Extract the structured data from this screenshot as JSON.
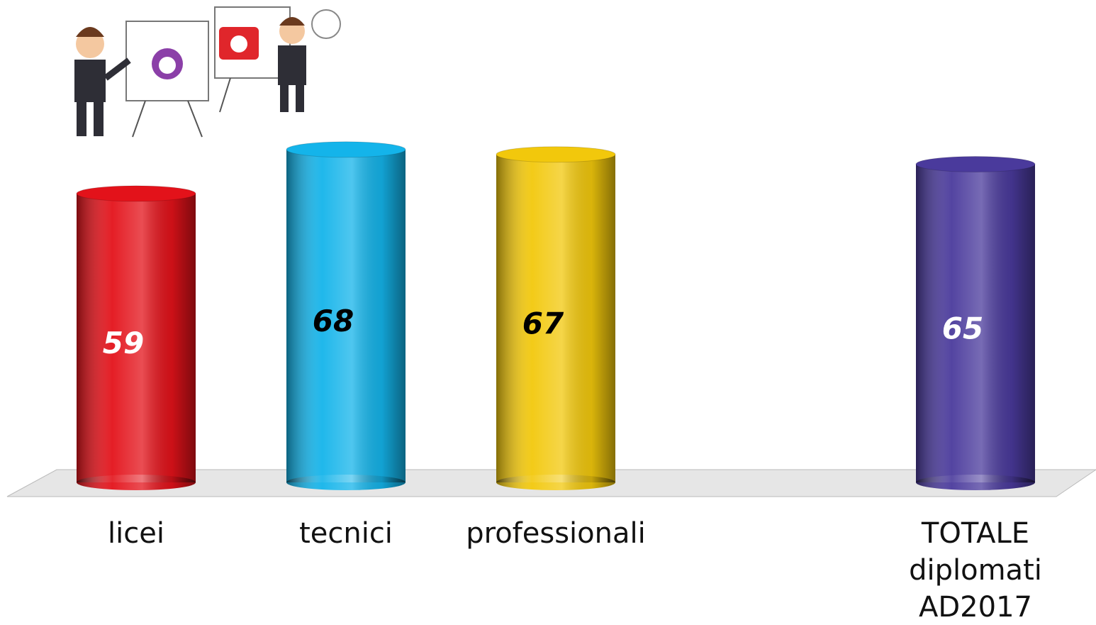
{
  "chart_data": {
    "type": "cylinder-bar",
    "categories": [
      "licei",
      "tecnici",
      "professionali",
      null,
      "TOTALE diplomati AD2017"
    ],
    "values": [
      59,
      68,
      67,
      null,
      65
    ],
    "colors": [
      "#e3121a",
      "#14b4ea",
      "#f2c80c",
      null,
      "#4a3a9c"
    ],
    "label_colors": [
      "#ffffff",
      "#000000",
      "#000000",
      null,
      "#ffffff"
    ]
  }
}
